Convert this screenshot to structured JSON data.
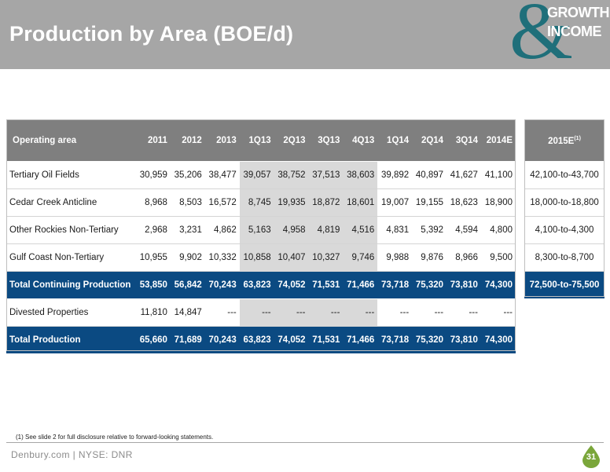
{
  "header": {
    "title": "Production by Area (BOE/d)",
    "logo_word1": "GROWTH",
    "logo_word2": "INCOME",
    "logo_symbol": "&"
  },
  "table": {
    "columns": [
      "Operating area",
      "2011",
      "2012",
      "2013",
      "1Q13",
      "2Q13",
      "3Q13",
      "4Q13",
      "1Q14",
      "2Q14",
      "3Q14",
      "2014E"
    ],
    "rows": [
      {
        "label": "Tertiary Oil Fields",
        "values": [
          "30,959",
          "35,206",
          "38,477",
          "39,057",
          "38,752",
          "37,513",
          "38,603",
          "39,892",
          "40,897",
          "41,627",
          "41,100"
        ],
        "projection": "42,100-to-43,700",
        "style": "normal"
      },
      {
        "label": "Cedar Creek Anticline",
        "values": [
          "8,968",
          "8,503",
          "16,572",
          "8,745",
          "19,935",
          "18,872",
          "18,601",
          "19,007",
          "19,155",
          "18,623",
          "18,900"
        ],
        "projection": "18,000-to-18,800",
        "style": "normal"
      },
      {
        "label": "Other Rockies Non-Tertiary",
        "values": [
          "2,968",
          "3,231",
          "4,862",
          "5,163",
          "4,958",
          "4,819",
          "4,516",
          "4,831",
          "5,392",
          "4,594",
          "4,800"
        ],
        "projection": "4,100-to-4,300",
        "style": "normal"
      },
      {
        "label": "Gulf Coast Non-Tertiary",
        "values": [
          "10,955",
          "9,902",
          "10,332",
          "10,858",
          "10,407",
          "10,327",
          "9,746",
          "9,988",
          "9,876",
          "8,966",
          "9,500"
        ],
        "projection": "8,300-to-8,700",
        "style": "normal"
      },
      {
        "label": "Total Continuing Production",
        "values": [
          "53,850",
          "56,842",
          "70,243",
          "63,823",
          "74,052",
          "71,531",
          "71,466",
          "73,718",
          "75,320",
          "73,810",
          "74,300"
        ],
        "projection": "72,500-to-75,500",
        "style": "total"
      },
      {
        "label": "Divested Properties",
        "values": [
          "11,810",
          "14,847",
          "---",
          "---",
          "---",
          "---",
          "---",
          "---",
          "---",
          "---",
          "---"
        ],
        "projection": null,
        "style": "normal"
      },
      {
        "label": "Total Production",
        "values": [
          "65,660",
          "71,689",
          "70,243",
          "63,823",
          "74,052",
          "71,531",
          "71,466",
          "73,718",
          "75,320",
          "73,810",
          "74,300"
        ],
        "projection": null,
        "style": "total"
      }
    ],
    "projection_header": "2015E",
    "projection_header_sup": "(1)"
  },
  "footnote": "(1) See slide 2 for full disclosure relative to forward-looking statements.",
  "footer": {
    "site": "Denbury.com | NYSE: DNR",
    "page": "31"
  },
  "colors": {
    "header_bg": "#a6a6a6",
    "table_header_bg": "#7f7f7f",
    "total_row_bg": "#0b4a82",
    "quarter_shade": "#d9d9d9",
    "logo_teal": "#1f6f7a",
    "badge_green": "#7aa63a"
  }
}
